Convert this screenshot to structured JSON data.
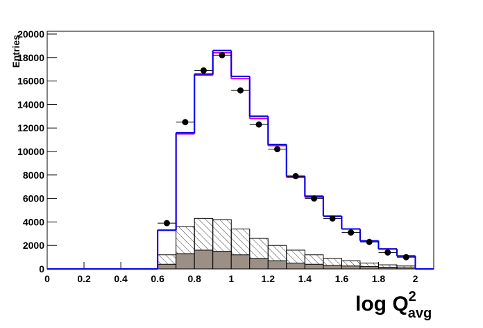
{
  "chart_data": {
    "type": "histogram",
    "bins": [
      0,
      0.1,
      0.2,
      0.3,
      0.4,
      0.5,
      0.6,
      0.7,
      0.8,
      0.9,
      1.0,
      1.1,
      1.2,
      1.3,
      1.4,
      1.5,
      1.6,
      1.7,
      1.8,
      1.9,
      2.0,
      2.1
    ],
    "series": [
      {
        "color": "#000000",
        "fill": "hatch",
        "values": [
          0,
          0,
          0,
          0,
          0,
          0,
          1200,
          3600,
          4300,
          4200,
          3400,
          2600,
          2000,
          1600,
          1200,
          900,
          700,
          500,
          350,
          250,
          0
        ]
      },
      {
        "color": "#000000",
        "fill": "#9c8f85",
        "values": [
          0,
          0,
          0,
          0,
          0,
          0,
          400,
          1300,
          1600,
          1500,
          1200,
          900,
          700,
          500,
          400,
          300,
          250,
          200,
          150,
          100,
          0
        ]
      },
      {
        "color": "#cc00cc",
        "fill": "none",
        "values": [
          0,
          0,
          0,
          0,
          0,
          0,
          3300,
          11500,
          16500,
          18400,
          16200,
          12800,
          10500,
          7800,
          6100,
          4500,
          3400,
          2400,
          1700,
          1100,
          0
        ]
      },
      {
        "color": "#0000ee",
        "fill": "none",
        "values": [
          0,
          0,
          0,
          0,
          0,
          0,
          3300,
          11600,
          16600,
          18600,
          16400,
          13000,
          10600,
          7900,
          6200,
          4500,
          3400,
          2400,
          1700,
          1100,
          0
        ]
      }
    ],
    "points": {
      "color": "#000000",
      "x": [
        0.65,
        0.75,
        0.85,
        0.95,
        1.05,
        1.15,
        1.25,
        1.35,
        1.45,
        1.55,
        1.65,
        1.75,
        1.85,
        1.95
      ],
      "values": [
        3900,
        12500,
        16900,
        18200,
        15200,
        12300,
        10200,
        7900,
        6000,
        4300,
        3100,
        2300,
        1400,
        1000
      ]
    },
    "xlim": [
      0,
      2.1
    ],
    "ylim": [
      0,
      20000
    ],
    "xticks": [
      0,
      0.2,
      0.4,
      0.6,
      0.8,
      1,
      1.2,
      1.4,
      1.6,
      1.8,
      2
    ],
    "yticks": [
      0,
      2000,
      4000,
      6000,
      8000,
      10000,
      12000,
      14000,
      16000,
      18000,
      20000
    ],
    "ylabel": "Entries",
    "xlabel": "log Q",
    "xlabel_sup": "2",
    "xlabel_sub": "avg"
  }
}
